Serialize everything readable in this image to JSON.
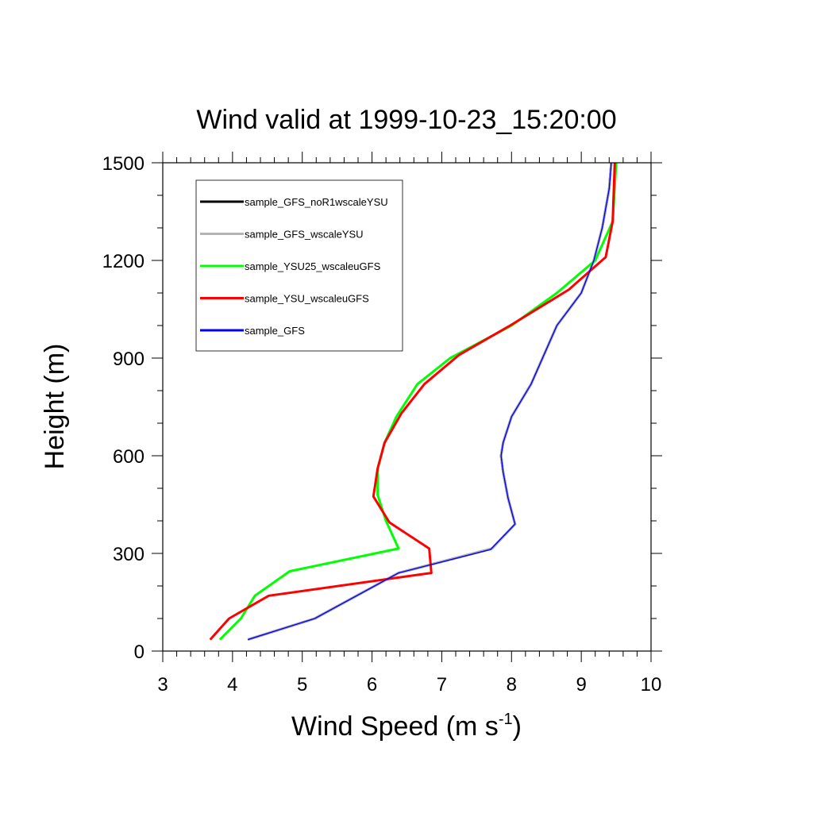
{
  "chart_data": {
    "type": "line",
    "title": "Wind valid at 1999-10-23_15:20:00",
    "xlabel": {
      "base": "Wind Speed (m s",
      "superscript": "-1",
      "suffix": ")"
    },
    "ylabel": "Height (m)",
    "xlim": [
      3,
      10
    ],
    "ylim": [
      0,
      1500
    ],
    "xticks": [
      3,
      4,
      5,
      6,
      7,
      8,
      9,
      10
    ],
    "xtick_labels": [
      "3",
      "4",
      "5",
      "6",
      "7",
      "8",
      "9",
      "10"
    ],
    "yticks": [
      0,
      300,
      600,
      900,
      1200,
      1500
    ],
    "ytick_labels": [
      "0",
      "300",
      "600",
      "900",
      "1200",
      "1500"
    ],
    "grid": false,
    "legend_position": "top-left",
    "series": [
      {
        "name": "sample_GFS_noR1wscaleYSU",
        "color": "#000000",
        "x": [
          4.22,
          5.18,
          6.38,
          7.72,
          8.05,
          7.95,
          7.88,
          7.85,
          7.88,
          8.0,
          8.28,
          8.65,
          9.0,
          9.18,
          9.3,
          9.4,
          9.43
        ],
        "y": [
          35,
          100,
          240,
          315,
          390,
          470,
          550,
          600,
          640,
          720,
          820,
          1000,
          1100,
          1200,
          1300,
          1420,
          1500
        ]
      },
      {
        "name": "sample_GFS_wscaleYSU",
        "color": "#b4b4b4",
        "x": [
          4.22,
          5.18,
          6.38,
          7.72,
          8.05,
          7.95,
          7.88,
          7.85,
          7.88,
          8.0,
          8.28,
          8.65,
          9.0,
          9.18,
          9.3,
          9.4,
          9.43
        ],
        "y": [
          35,
          100,
          240,
          315,
          390,
          470,
          550,
          600,
          640,
          720,
          820,
          1000,
          1100,
          1200,
          1300,
          1420,
          1500
        ]
      },
      {
        "name": "sample_YSU25_wscaleuGFS",
        "color": "#00ff00",
        "x": [
          3.82,
          4.12,
          4.32,
          4.82,
          6.38,
          6.2,
          6.08,
          6.08,
          6.18,
          6.35,
          6.65,
          7.12,
          8.0,
          8.65,
          9.2,
          9.45,
          9.5
        ],
        "y": [
          35,
          100,
          170,
          245,
          315,
          400,
          480,
          560,
          640,
          720,
          820,
          900,
          1000,
          1100,
          1200,
          1320,
          1500
        ]
      },
      {
        "name": "sample_YSU_wscaleuGFS",
        "color": "#ff0000",
        "x": [
          3.68,
          3.95,
          4.52,
          6.85,
          6.82,
          6.25,
          6.02,
          6.08,
          6.18,
          6.42,
          6.75,
          7.25,
          7.98,
          8.82,
          9.35,
          9.45,
          9.48
        ],
        "y": [
          35,
          100,
          170,
          240,
          315,
          395,
          475,
          560,
          640,
          730,
          820,
          910,
          1000,
          1110,
          1210,
          1320,
          1500
        ]
      },
      {
        "name": "sample_GFS",
        "color": "#0000ff",
        "x": [
          4.22,
          5.18,
          6.38,
          7.7,
          8.05,
          7.95,
          7.88,
          7.85,
          7.88,
          8.0,
          8.28,
          8.65,
          9.0,
          9.18,
          9.3,
          9.4,
          9.43
        ],
        "y": [
          35,
          100,
          240,
          312,
          390,
          470,
          550,
          600,
          640,
          720,
          820,
          1000,
          1100,
          1200,
          1300,
          1420,
          1500
        ]
      }
    ]
  }
}
